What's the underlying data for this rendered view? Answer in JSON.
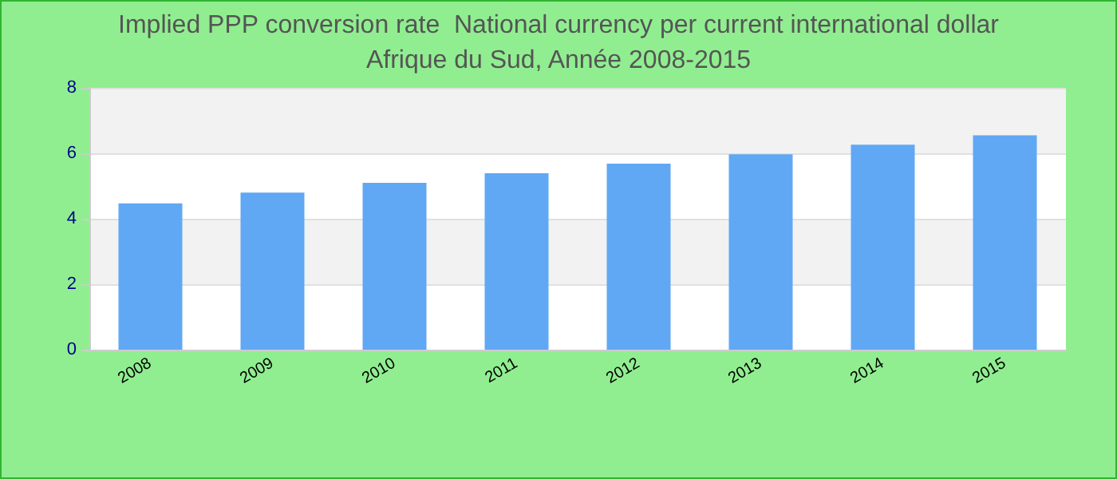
{
  "chart_data": {
    "type": "bar",
    "title": "Implied PPP conversion rate  National currency per current international dollar",
    "subtitle": "Afrique du Sud, Année 2008-2015",
    "categories": [
      "2008",
      "2009",
      "2010",
      "2011",
      "2012",
      "2013",
      "2014",
      "2015"
    ],
    "values": [
      4.47,
      4.8,
      5.1,
      5.39,
      5.68,
      5.97,
      6.26,
      6.55
    ],
    "color": "#60a8f4",
    "ylim": [
      0,
      8
    ],
    "yticks": [
      0,
      2,
      4,
      6,
      8
    ],
    "grid": "y"
  }
}
